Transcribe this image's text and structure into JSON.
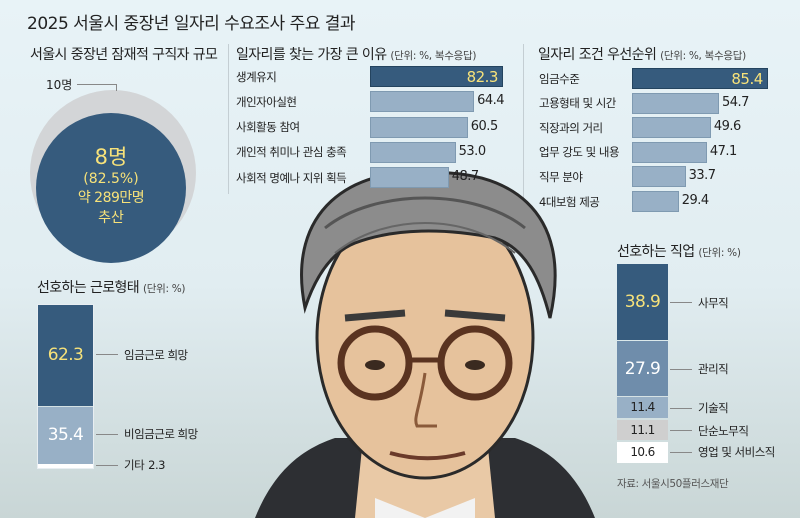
{
  "title": "2025 서울시 중장년 일자리 수요조사 주요 결과",
  "colors": {
    "dark": "#365b7d",
    "mid": "#6f8dab",
    "light": "#98b0c6",
    "gray": "#cfcfcf",
    "white": "#ffffff",
    "highlight": "#f7e27a"
  },
  "chart_data": [
    {
      "type": "pie",
      "title": "서울시 중장년 잠재적 구직자 규모",
      "total_label": "10명",
      "highlight": {
        "label": "8명",
        "percent_label": "(82.5%)",
        "estimate": "약 289만명",
        "estimate_suffix": "추산"
      },
      "values": [
        82.5,
        17.5
      ]
    },
    {
      "type": "bar",
      "title": "일자리를 찾는 가장 큰 이유",
      "unit": "(단위: %, 복수응답)",
      "categories": [
        "생계유지",
        "개인자아실현",
        "사회활동 참여",
        "개인적 취미나 관심 충족",
        "사회적 명예나 지위 획득"
      ],
      "values": [
        82.3,
        64.4,
        60.5,
        53.0,
        48.7
      ],
      "labels": [
        "82.3",
        "64.4",
        "60.5",
        "53.0",
        "48.7"
      ]
    },
    {
      "type": "bar",
      "title": "일자리 조건 우선순위",
      "unit": "(단위: %, 복수응답)",
      "categories": [
        "임금수준",
        "고용형태 및 시간",
        "직장과의 거리",
        "업무 강도 및 내용",
        "직무 분야",
        "4대보험 제공"
      ],
      "values": [
        85.4,
        54.7,
        49.6,
        47.1,
        33.7,
        29.4
      ],
      "labels": [
        "85.4",
        "54.7",
        "49.6",
        "47.1",
        "33.7",
        "29.4"
      ]
    },
    {
      "type": "bar",
      "stacked": true,
      "title": "선호하는 근로형태",
      "unit": "(단위: %)",
      "categories": [
        "임금근로 희망",
        "비임금근로 희망",
        "기타"
      ],
      "values": [
        62.3,
        35.4,
        2.3
      ],
      "labels": [
        "62.3",
        "35.4",
        "2.3"
      ]
    },
    {
      "type": "bar",
      "stacked": true,
      "title": "선호하는 직업",
      "unit": "(단위: %)",
      "categories": [
        "사무직",
        "관리직",
        "기술직",
        "단순노무직",
        "영업 및 서비스직"
      ],
      "values": [
        38.9,
        27.9,
        11.4,
        11.1,
        10.6
      ],
      "labels": [
        "38.9",
        "27.9",
        "11.4",
        "11.1",
        "10.6"
      ]
    }
  ],
  "source": "자료: 서울시50플러스재단"
}
